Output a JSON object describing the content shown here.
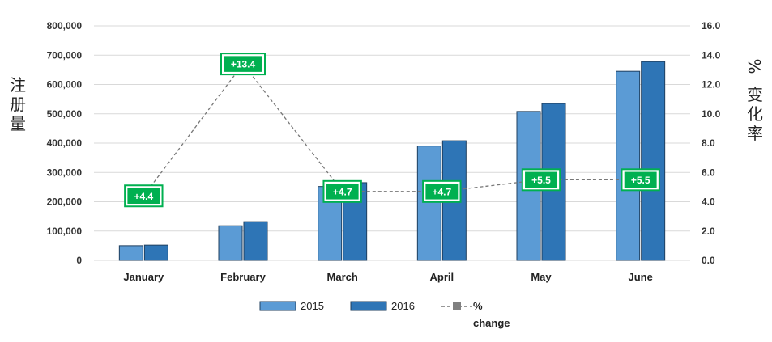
{
  "chart_data": {
    "type": "bar",
    "categories": [
      "January",
      "February",
      "March",
      "April",
      "May",
      "June"
    ],
    "series": [
      {
        "name": "2015",
        "values": [
          50000,
          118000,
          252000,
          390000,
          508000,
          645000
        ],
        "color": "#5b9bd5"
      },
      {
        "name": "2016",
        "values": [
          52000,
          132000,
          265000,
          408000,
          535000,
          678000
        ],
        "color": "#2e75b6"
      }
    ],
    "line_series": {
      "name": "% change",
      "legend_line1": "%",
      "legend_line2": "change",
      "values": [
        4.4,
        13.4,
        4.7,
        4.7,
        5.5,
        5.5
      ],
      "labels": [
        "+4.4",
        "+13.4",
        "+4.7",
        "+4.7",
        "+5.5",
        "+5.5"
      ],
      "line_color": "#777777",
      "label_bg": "#00b050"
    },
    "ylabel": "注册量",
    "y2label_top": "%",
    "y2label_bottom": "变化率",
    "ylim": [
      0,
      800000
    ],
    "y_ticks": [
      "0",
      "100,000",
      "200,000",
      "300,000",
      "400,000",
      "500,000",
      "600,000",
      "700,000",
      "800,000"
    ],
    "y2lim": [
      0,
      16
    ],
    "y2_ticks": [
      "0.0",
      "2.0",
      "4.0",
      "6.0",
      "8.0",
      "10.0",
      "12.0",
      "14.0",
      "16.0"
    ],
    "grid": true,
    "legend_position": "bottom"
  }
}
